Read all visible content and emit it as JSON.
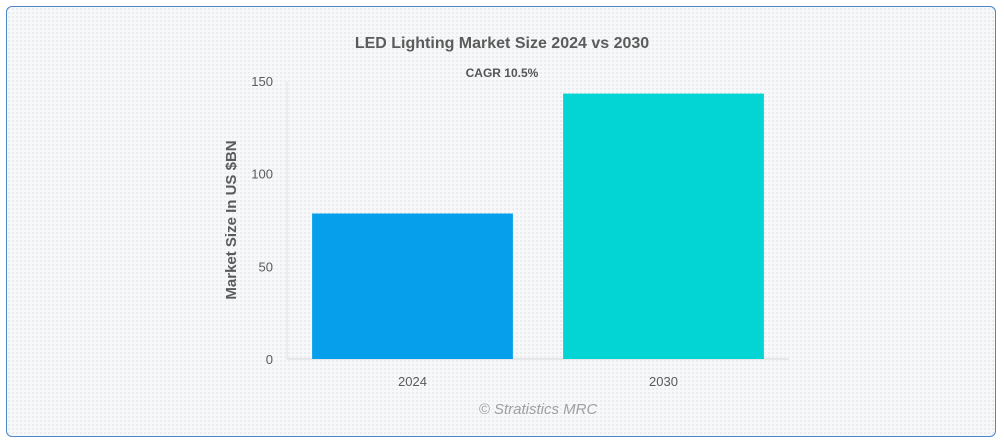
{
  "chart_data": {
    "type": "bar",
    "title": "LED Lighting Market Size 2024 vs 2030",
    "subtitle": "CAGR 10.5%",
    "xlabel": "",
    "ylabel": "Market Size In US $BN",
    "categories": [
      "2024",
      "2030"
    ],
    "values": [
      78.5,
      143.2
    ],
    "colors": [
      "#069fec",
      "#03d4d4"
    ],
    "ylim": [
      0,
      150
    ],
    "yticks": [
      0,
      50,
      100,
      150
    ],
    "grid": false,
    "legend": "none"
  },
  "credit": "© Stratistics MRC"
}
